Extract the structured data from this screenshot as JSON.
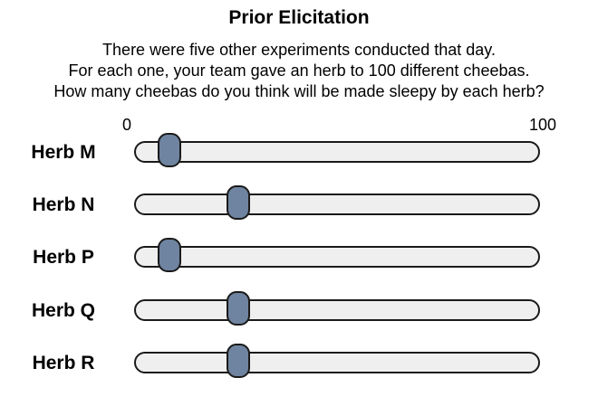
{
  "header": {
    "title": "Prior Elicitation"
  },
  "instructions": {
    "lines": [
      "There were five other experiments conducted that day.",
      "For each one, your team gave an herb to 100 different cheebas.",
      "How many cheebas do you think will be made sleepy by each herb?"
    ]
  },
  "scale": {
    "min_label": "0",
    "max_label": "100",
    "min": 0,
    "max": 100
  },
  "sliders": [
    {
      "label": "Herb M",
      "value": 6
    },
    {
      "label": "Herb N",
      "value": 24
    },
    {
      "label": "Herb P",
      "value": 6
    },
    {
      "label": "Herb Q",
      "value": 24
    },
    {
      "label": "Herb R",
      "value": 24
    }
  ],
  "colors": {
    "thumb": "#6f84a0",
    "track": "#efefef",
    "outline": "#1a1a1a"
  }
}
